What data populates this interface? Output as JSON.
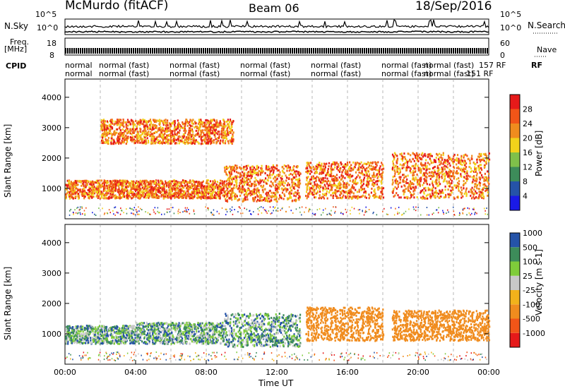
{
  "header": {
    "station": "McMurdo (fitACF)",
    "beam": "Beam 06",
    "date": "18/Sep/2016"
  },
  "left_labels": {
    "nsky": "N.Sky",
    "freq_line1": "Freq.",
    "freq_line2": "[MHz]",
    "cpid": "CPID"
  },
  "right_labels": {
    "nsearch": "N.Search",
    "nave": "Nave",
    "rf": "RF"
  },
  "noise_ticks": [
    "10^5",
    "10^0"
  ],
  "freq_ticks": [
    "18",
    "8"
  ],
  "nave_ticks": [
    "60",
    "0"
  ],
  "cpid_row1": [
    "normal",
    "normal (fast)",
    "normal (fast)",
    "normal (fast)",
    "normal (fast)",
    "normal (fast)",
    "normal (fast)",
    "157 RF"
  ],
  "cpid_row2": [
    "normal",
    "normal (fast)",
    "normal (fast)",
    "normal (fast)",
    "normal (fast)",
    "normal (fast)",
    "normal (fast)",
    "151 RF"
  ],
  "time_axis": {
    "label": "Time UT",
    "ticks": [
      "00:00",
      "04:00",
      "08:00",
      "12:00",
      "16:00",
      "20:00",
      "00:00"
    ]
  },
  "colors": {
    "power": [
      "#1a1ae6",
      "#2553a8",
      "#3d8c5a",
      "#7fc04a",
      "#f2d21b",
      "#f08c1e",
      "#f25518",
      "#e61a1a"
    ],
    "velocity": [
      "#e61a1a",
      "#f25518",
      "#f08c1e",
      "#f2b21b",
      "#c8c8c8",
      "#7fcc3a",
      "#3d8c5a",
      "#2553a8"
    ]
  },
  "chart_data": [
    {
      "type": "heatmap",
      "name": "power",
      "ylabel": "Slant Range [km]",
      "yticks": [
        1000,
        2000,
        3000,
        4000
      ],
      "ylim": [
        0,
        4600
      ],
      "xlim": [
        0,
        24
      ],
      "colorbar_label": "Power [dB]",
      "colorbar_ticks": [
        "4",
        "8",
        "12",
        "16",
        "20",
        "24",
        "28"
      ],
      "scatter_bands": [
        {
          "t0": 0.0,
          "t1": 4.0,
          "r0": 700,
          "r1": 1300
        },
        {
          "t0": 4.0,
          "t1": 9.0,
          "r0": 700,
          "r1": 1300
        },
        {
          "t0": 9.0,
          "t1": 13.3,
          "r0": 600,
          "r1": 1800
        },
        {
          "t0": 13.6,
          "t1": 18.0,
          "r0": 700,
          "r1": 1900
        },
        {
          "t0": 18.5,
          "t1": 24.0,
          "r0": 700,
          "r1": 2200
        },
        {
          "t0": 2.0,
          "t1": 9.5,
          "r0": 2500,
          "r1": 3300
        }
      ]
    },
    {
      "type": "heatmap",
      "name": "velocity",
      "ylabel": "Slant Range [km]",
      "yticks": [
        1000,
        2000,
        3000,
        4000
      ],
      "ylim": [
        0,
        4600
      ],
      "xlim": [
        0,
        24
      ],
      "colorbar_label": "Velocity [m s-1]",
      "colorbar_ticks": [
        "-1000",
        "-500",
        "-100",
        "-25",
        "25",
        "100",
        "500",
        "1000"
      ],
      "scatter_bands": [
        {
          "t0": 0.0,
          "t1": 4.0,
          "r0": 700,
          "r1": 1300
        },
        {
          "t0": 4.0,
          "t1": 9.0,
          "r0": 700,
          "r1": 1400
        },
        {
          "t0": 9.0,
          "t1": 13.3,
          "r0": 600,
          "r1": 1700
        },
        {
          "t0": 13.6,
          "t1": 18.0,
          "r0": 800,
          "r1": 1900
        },
        {
          "t0": 18.5,
          "t1": 24.0,
          "r0": 800,
          "r1": 1800
        }
      ]
    }
  ]
}
